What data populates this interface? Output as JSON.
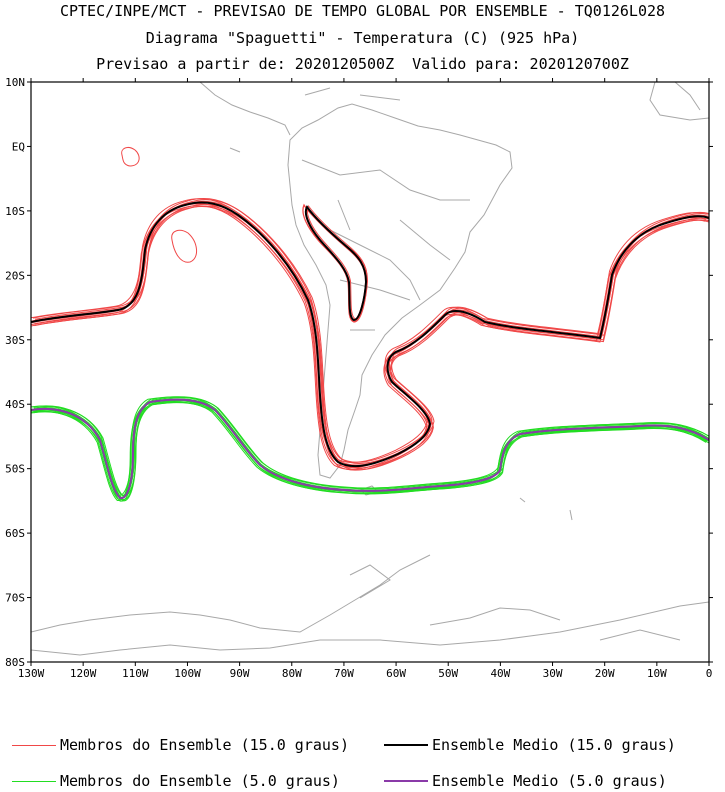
{
  "header": {
    "line1": "CPTEC/INPE/MCT - PREVISAO DE TEMPO GLOBAL POR ENSEMBLE - TQ0126L028",
    "line2": "Diagrama \"Spaguetti\" - Temperatura (C) (925 hPa)",
    "line3": "Previsao a partir de: 2020120500Z  Valido para: 2020120700Z"
  },
  "axes": {
    "lat_labels": [
      "10N",
      "EQ",
      "10S",
      "20S",
      "30S",
      "40S",
      "50S",
      "60S",
      "70S",
      "80S"
    ],
    "lon_labels": [
      "130W",
      "120W",
      "110W",
      "100W",
      "90W",
      "80W",
      "70W",
      "60W",
      "50W",
      "40W",
      "30W",
      "20W",
      "10W",
      "0"
    ]
  },
  "colors": {
    "member_15": "#f04848",
    "mean_15": "#000000",
    "member_5": "#22dd22",
    "mean_5": "#8a3aa8",
    "coast": "#a8a8a8"
  },
  "legend": {
    "members_15": "Membros do Ensemble (15.0 graus)",
    "mean_15": "Ensemble Medio (15.0 graus)",
    "members_5": "Membros do Ensemble (5.0 graus)",
    "mean_5": "Ensemble Medio (5.0 graus)"
  }
}
